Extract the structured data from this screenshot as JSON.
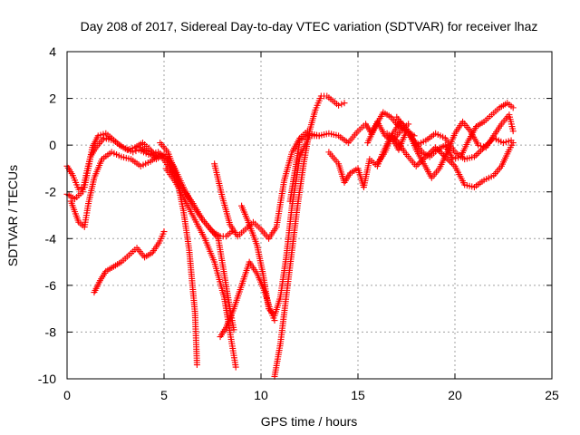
{
  "chart_data": {
    "type": "scatter",
    "title": "Day 208 of 2017, Sidereal Day-to-day VTEC variation (SDTVAR) for receiver lhaz",
    "xlabel": "GPS time / hours",
    "ylabel": "SDTVAR / TECUs",
    "xlim": [
      0,
      25
    ],
    "ylim": [
      -10,
      4
    ],
    "xticks": [
      0,
      5,
      10,
      15,
      20,
      25
    ],
    "yticks": [
      -10,
      -8,
      -6,
      -4,
      -2,
      0,
      2,
      4
    ],
    "grid": true,
    "marker": "+",
    "color": "#ff0000",
    "series": [
      {
        "x": [
          0.0,
          0.3,
          0.6,
          0.9,
          1.1,
          1.3,
          1.6,
          2.0,
          2.3,
          2.7,
          3.1,
          3.5,
          3.9,
          4.3,
          4.6
        ],
        "y": [
          -0.9,
          -1.3,
          -1.9,
          -1.8,
          -1.0,
          -0.1,
          0.4,
          0.5,
          0.3,
          0.0,
          -0.2,
          -0.1,
          0.1,
          -0.2,
          -0.5
        ]
      },
      {
        "x": [
          0.0,
          0.4,
          0.8,
          1.0,
          1.2,
          1.5,
          1.9,
          2.4,
          2.9,
          3.4,
          3.7,
          4.2,
          4.7,
          5.2,
          5.6
        ],
        "y": [
          -2.1,
          -2.3,
          -2.0,
          -1.2,
          -0.5,
          -0.1,
          0.3,
          0.2,
          -0.1,
          -0.3,
          -0.2,
          -0.4,
          -0.3,
          -0.6,
          -1.3
        ]
      },
      {
        "x": [
          0.2,
          0.6,
          0.9,
          1.1,
          1.4,
          1.8,
          2.3,
          2.8,
          3.3,
          3.8,
          4.3,
          4.8,
          5.3,
          5.9,
          6.5,
          7.0,
          7.5,
          7.9,
          8.2,
          8.5
        ],
        "y": [
          -2.4,
          -3.3,
          -3.5,
          -2.5,
          -1.4,
          -0.6,
          -0.3,
          -0.5,
          -0.6,
          -0.9,
          -0.7,
          -0.4,
          -1.0,
          -1.8,
          -2.5,
          -3.2,
          -3.7,
          -3.9,
          -3.9,
          -3.7
        ]
      },
      {
        "x": [
          1.4,
          1.7,
          2.0,
          2.4,
          2.8,
          3.2,
          3.6,
          4.0,
          4.4,
          4.8,
          5.0
        ],
        "y": [
          -6.3,
          -5.8,
          -5.4,
          -5.2,
          -5.0,
          -4.7,
          -4.4,
          -4.8,
          -4.6,
          -4.1,
          -3.7
        ]
      },
      {
        "x": [
          4.8,
          5.2,
          5.6,
          6.0,
          6.3,
          6.6,
          6.7
        ],
        "y": [
          0.1,
          -0.3,
          -1.2,
          -2.8,
          -4.5,
          -7.2,
          -9.4
        ]
      },
      {
        "x": [
          3.8,
          4.2,
          4.6,
          5.0,
          5.5,
          6.0,
          6.5,
          7.0,
          7.4,
          7.8,
          8.1,
          8.4,
          8.6
        ],
        "y": [
          -0.1,
          -0.3,
          -0.6,
          -0.4,
          -0.9,
          -1.8,
          -2.6,
          -3.2,
          -3.6,
          -4.0,
          -5.5,
          -7.0,
          -7.9
        ]
      },
      {
        "x": [
          5.1,
          5.6,
          6.1,
          6.6,
          7.1,
          7.6,
          8.1,
          8.5,
          8.7
        ],
        "y": [
          -1.0,
          -1.6,
          -2.4,
          -3.2,
          -4.0,
          -5.0,
          -6.5,
          -8.5,
          -9.5
        ]
      },
      {
        "x": [
          7.6,
          8.0,
          8.4,
          8.8,
          9.2,
          9.6,
          10.0,
          10.4,
          10.8,
          11.2,
          11.6,
          12.0,
          12.4
        ],
        "y": [
          -0.8,
          -2.2,
          -3.4,
          -3.9,
          -3.6,
          -3.3,
          -3.6,
          -4.0,
          -3.5,
          -1.5,
          -0.3,
          0.3,
          0.6
        ]
      },
      {
        "x": [
          7.9,
          8.2,
          8.6,
          9.0,
          9.4,
          9.8,
          10.2,
          10.5,
          10.7
        ],
        "y": [
          -8.2,
          -7.8,
          -7.0,
          -6.0,
          -5.0,
          -5.5,
          -6.3,
          -7.1,
          -7.5
        ]
      },
      {
        "x": [
          9.0,
          9.4,
          9.8,
          10.1,
          10.4,
          10.7,
          11.0,
          11.3,
          11.6,
          12.0,
          12.5,
          13.0
        ],
        "y": [
          -2.6,
          -3.4,
          -4.3,
          -5.5,
          -7.0,
          -7.3,
          -6.5,
          -4.8,
          -2.6,
          -0.5,
          0.4,
          0.4
        ]
      },
      {
        "x": [
          10.7,
          11.0,
          11.3,
          11.6,
          11.9,
          12.2,
          12.5,
          12.8,
          13.1,
          13.4,
          13.7,
          14.0,
          14.3
        ],
        "y": [
          -9.9,
          -8.5,
          -6.5,
          -4.5,
          -2.5,
          -0.8,
          0.6,
          1.5,
          2.1,
          2.1,
          1.9,
          1.7,
          1.8
        ]
      },
      {
        "x": [
          11.5,
          12.0,
          12.5,
          13.0,
          13.5,
          14.0,
          14.5,
          15.0,
          15.4,
          15.7,
          16.0,
          16.4,
          16.8,
          17.2,
          17.6
        ],
        "y": [
          -2.4,
          0.2,
          0.5,
          0.4,
          0.5,
          0.4,
          0.1,
          0.6,
          0.9,
          0.5,
          1.0,
          0.4,
          0.2,
          0.6,
          0.9
        ]
      },
      {
        "x": [
          13.5,
          14.0,
          14.3,
          14.6,
          15.0,
          15.3,
          15.6,
          16.0,
          16.3,
          16.7,
          17.1,
          17.5,
          17.9
        ],
        "y": [
          -0.3,
          -0.8,
          -1.6,
          -1.2,
          -1.0,
          -1.8,
          -0.6,
          -0.9,
          -0.3,
          0.4,
          -0.2,
          0.6,
          0.4
        ]
      },
      {
        "x": [
          15.5,
          15.9,
          16.3,
          16.7,
          17.1,
          17.5,
          17.9,
          18.3,
          18.7,
          19.1,
          19.5,
          19.9,
          20.3,
          20.7,
          21.1,
          21.5,
          21.9,
          22.3,
          22.7,
          23.0
        ],
        "y": [
          0.1,
          0.8,
          1.4,
          1.2,
          0.8,
          0.6,
          0.2,
          -0.3,
          -0.5,
          -0.2,
          0.0,
          -0.6,
          -0.5,
          0.2,
          0.8,
          1.0,
          1.3,
          1.6,
          1.8,
          1.6
        ]
      },
      {
        "x": [
          16.0,
          16.4,
          16.8,
          17.2,
          17.6,
          18.0,
          18.4,
          18.8,
          19.2,
          19.6,
          20.0,
          20.4,
          20.8,
          21.2,
          21.6,
          22.0,
          22.4,
          22.8,
          23.0
        ],
        "y": [
          -0.8,
          -0.3,
          0.5,
          1.0,
          0.6,
          -0.2,
          -0.8,
          -1.4,
          -1.0,
          -0.3,
          0.5,
          1.0,
          0.6,
          0.0,
          -0.1,
          0.4,
          0.9,
          1.3,
          0.6
        ]
      },
      {
        "x": [
          16.5,
          17.0,
          17.5,
          18.0,
          18.5,
          19.0,
          19.5,
          20.0,
          20.5,
          21.0,
          21.5,
          22.0,
          22.4,
          22.8,
          23.0
        ],
        "y": [
          0.5,
          0.2,
          -0.4,
          -0.9,
          -0.5,
          -0.1,
          -0.5,
          -0.9,
          -1.7,
          -1.8,
          -1.5,
          -1.3,
          -0.9,
          -0.2,
          0.1
        ]
      },
      {
        "x": [
          17.0,
          17.5,
          18.0,
          18.5,
          19.0,
          19.5,
          20.0,
          20.5,
          21.0,
          21.5,
          22.0,
          22.5,
          22.9
        ],
        "y": [
          1.2,
          0.6,
          0.0,
          0.2,
          0.5,
          0.3,
          -0.3,
          -0.6,
          -0.5,
          -0.1,
          0.3,
          0.1,
          0.2
        ]
      }
    ]
  }
}
